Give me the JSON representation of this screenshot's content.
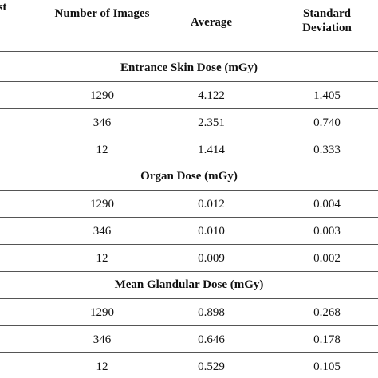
{
  "table": {
    "header": [
      "ast",
      "Number of Images",
      "Average",
      "Standard Deviation"
    ],
    "sections": [
      {
        "title": "Entrance Skin Dose (mGy)",
        "rows": [
          [
            "1290",
            "4.122",
            "1.405"
          ],
          [
            "346",
            "2.351",
            "0.740"
          ],
          [
            "12",
            "1.414",
            "0.333"
          ]
        ]
      },
      {
        "title": "Organ Dose (mGy)",
        "rows": [
          [
            "1290",
            "0.012",
            "0.004"
          ],
          [
            "346",
            "0.010",
            "0.003"
          ],
          [
            "12",
            "0.009",
            "0.002"
          ]
        ]
      },
      {
        "title": "Mean Glandular Dose (mGy)",
        "rows": [
          [
            "1290",
            "0.898",
            "0.268"
          ],
          [
            "346",
            "0.646",
            "0.178"
          ],
          [
            "12",
            "0.529",
            "0.105"
          ]
        ]
      }
    ]
  }
}
